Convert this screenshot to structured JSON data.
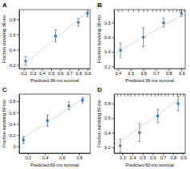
{
  "chart_data": [
    {
      "type": "scatter",
      "title": "A",
      "xlabel": "Predicted 36-mo survival",
      "ylabel": "Fraction surviving 36 mo",
      "x": [
        0.22,
        0.55,
        0.8,
        0.9
      ],
      "values": [
        0.25,
        0.58,
        0.76,
        0.88
      ],
      "yerr": [
        0.06,
        0.08,
        0.05,
        0.04
      ],
      "diag": [
        0.15,
        0.93
      ],
      "xlim": [
        0.15,
        0.93
      ],
      "ylim": [
        0.15,
        0.93
      ],
      "xticks": [
        0.2,
        0.3,
        0.4,
        0.5,
        0.6,
        0.7,
        0.8,
        0.9
      ],
      "yticks": [
        0.2,
        0.4,
        0.6,
        0.8
      ]
    },
    {
      "type": "scatter",
      "title": "B",
      "xlabel": "Predicted 36-mo survival",
      "ylabel": "Fraction surviving 36 mo",
      "x": [
        0.42,
        0.6,
        0.76,
        0.9
      ],
      "values": [
        0.42,
        0.6,
        0.8,
        0.93
      ],
      "yerr": [
        0.1,
        0.13,
        0.06,
        0.04
      ],
      "diag": [
        0.37,
        0.93
      ],
      "rug": [
        0.4,
        0.43,
        0.48,
        0.52,
        0.56,
        0.6,
        0.63,
        0.67,
        0.7,
        0.73,
        0.76,
        0.8,
        0.83,
        0.86,
        0.88,
        0.9,
        0.92
      ],
      "xlim": [
        0.37,
        0.93
      ],
      "ylim": [
        0.17,
        0.98
      ],
      "xticks": [
        0.4,
        0.5,
        0.6,
        0.7,
        0.8,
        0.9
      ],
      "yticks": [
        0.2,
        0.4,
        0.6,
        0.8
      ]
    },
    {
      "type": "scatter",
      "title": "C",
      "xlabel": "Predicted 60-mo survival",
      "ylabel": "Fraction surviving 60 mo",
      "x": [
        0.15,
        0.43,
        0.68,
        0.84
      ],
      "values": [
        0.11,
        0.46,
        0.72,
        0.82
      ],
      "yerr": [
        0.06,
        0.1,
        0.07,
        0.05
      ],
      "diag": [
        0.1,
        0.93
      ],
      "xlim": [
        0.1,
        0.93
      ],
      "ylim": [
        -0.12,
        0.93
      ],
      "xticks": [
        0.2,
        0.4,
        0.6,
        0.8
      ],
      "yticks": [
        0,
        0.2,
        0.4,
        0.6,
        0.8
      ]
    },
    {
      "type": "scatter",
      "title": "D",
      "xlabel": "Predicted 60-mo survival",
      "ylabel": "Fraction surviving 60 mo",
      "x": [
        0.28,
        0.47,
        0.65,
        0.85
      ],
      "values": [
        0.22,
        0.4,
        0.63,
        0.8
      ],
      "yerr": [
        0.09,
        0.12,
        0.09,
        0.1
      ],
      "diag": [
        0.22,
        0.92
      ],
      "rug": [
        0.25,
        0.28,
        0.32,
        0.35,
        0.38,
        0.42,
        0.46,
        0.5,
        0.54,
        0.58,
        0.62,
        0.65,
        0.68,
        0.72,
        0.75,
        0.8,
        0.84,
        0.87,
        0.9
      ],
      "xlim": [
        0.22,
        0.92
      ],
      "ylim": [
        0.12,
        0.93
      ],
      "xticks": [
        0.3,
        0.4,
        0.5,
        0.6,
        0.7,
        0.8,
        0.9
      ],
      "yticks": [
        0.2,
        0.4,
        0.6,
        0.8
      ]
    }
  ]
}
